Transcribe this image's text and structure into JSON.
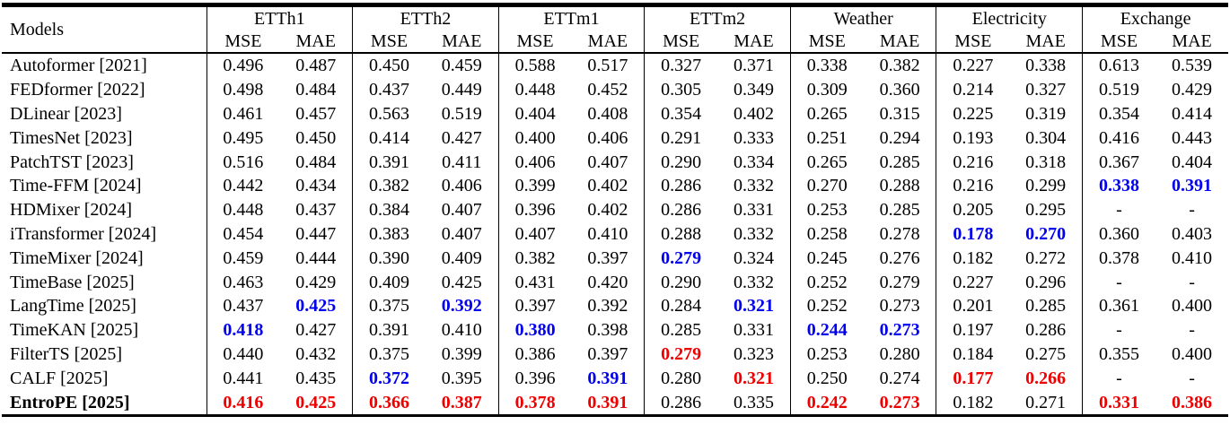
{
  "table": {
    "corner_header": "Models",
    "metric_labels": [
      "MSE",
      "MAE"
    ],
    "datasets": [
      "ETTh1",
      "ETTh2",
      "ETTm1",
      "ETTm2",
      "Weather",
      "Electricity",
      "Exchange"
    ],
    "colors": {
      "red_highlight": "#ee0000",
      "blue_highlight": "#0000ee",
      "text": "#000000",
      "rule": "#000000",
      "background": "#ffffff"
    },
    "rows": [
      {
        "model": "Autoformer [2021]",
        "bold": false,
        "cells": [
          {
            "v": "0.496",
            "s": ""
          },
          {
            "v": "0.487",
            "s": ""
          },
          {
            "v": "0.450",
            "s": ""
          },
          {
            "v": "0.459",
            "s": ""
          },
          {
            "v": "0.588",
            "s": ""
          },
          {
            "v": "0.517",
            "s": ""
          },
          {
            "v": "0.327",
            "s": ""
          },
          {
            "v": "0.371",
            "s": ""
          },
          {
            "v": "0.338",
            "s": ""
          },
          {
            "v": "0.382",
            "s": ""
          },
          {
            "v": "0.227",
            "s": ""
          },
          {
            "v": "0.338",
            "s": ""
          },
          {
            "v": "0.613",
            "s": ""
          },
          {
            "v": "0.539",
            "s": ""
          }
        ]
      },
      {
        "model": "FEDformer [2022]",
        "bold": false,
        "cells": [
          {
            "v": "0.498",
            "s": ""
          },
          {
            "v": "0.484",
            "s": ""
          },
          {
            "v": "0.437",
            "s": ""
          },
          {
            "v": "0.449",
            "s": ""
          },
          {
            "v": "0.448",
            "s": ""
          },
          {
            "v": "0.452",
            "s": ""
          },
          {
            "v": "0.305",
            "s": ""
          },
          {
            "v": "0.349",
            "s": ""
          },
          {
            "v": "0.309",
            "s": ""
          },
          {
            "v": "0.360",
            "s": ""
          },
          {
            "v": "0.214",
            "s": ""
          },
          {
            "v": "0.327",
            "s": ""
          },
          {
            "v": "0.519",
            "s": ""
          },
          {
            "v": "0.429",
            "s": ""
          }
        ]
      },
      {
        "model": "DLinear [2023]",
        "bold": false,
        "cells": [
          {
            "v": "0.461",
            "s": ""
          },
          {
            "v": "0.457",
            "s": ""
          },
          {
            "v": "0.563",
            "s": ""
          },
          {
            "v": "0.519",
            "s": ""
          },
          {
            "v": "0.404",
            "s": ""
          },
          {
            "v": "0.408",
            "s": ""
          },
          {
            "v": "0.354",
            "s": ""
          },
          {
            "v": "0.402",
            "s": ""
          },
          {
            "v": "0.265",
            "s": ""
          },
          {
            "v": "0.315",
            "s": ""
          },
          {
            "v": "0.225",
            "s": ""
          },
          {
            "v": "0.319",
            "s": ""
          },
          {
            "v": "0.354",
            "s": ""
          },
          {
            "v": "0.414",
            "s": ""
          }
        ]
      },
      {
        "model": "TimesNet [2023]",
        "bold": false,
        "cells": [
          {
            "v": "0.495",
            "s": ""
          },
          {
            "v": "0.450",
            "s": ""
          },
          {
            "v": "0.414",
            "s": ""
          },
          {
            "v": "0.427",
            "s": ""
          },
          {
            "v": "0.400",
            "s": ""
          },
          {
            "v": "0.406",
            "s": ""
          },
          {
            "v": "0.291",
            "s": ""
          },
          {
            "v": "0.333",
            "s": ""
          },
          {
            "v": "0.251",
            "s": ""
          },
          {
            "v": "0.294",
            "s": ""
          },
          {
            "v": "0.193",
            "s": ""
          },
          {
            "v": "0.304",
            "s": ""
          },
          {
            "v": "0.416",
            "s": ""
          },
          {
            "v": "0.443",
            "s": ""
          }
        ]
      },
      {
        "model": "PatchTST [2023]",
        "bold": false,
        "cells": [
          {
            "v": "0.516",
            "s": ""
          },
          {
            "v": "0.484",
            "s": ""
          },
          {
            "v": "0.391",
            "s": ""
          },
          {
            "v": "0.411",
            "s": ""
          },
          {
            "v": "0.406",
            "s": ""
          },
          {
            "v": "0.407",
            "s": ""
          },
          {
            "v": "0.290",
            "s": ""
          },
          {
            "v": "0.334",
            "s": ""
          },
          {
            "v": "0.265",
            "s": ""
          },
          {
            "v": "0.285",
            "s": ""
          },
          {
            "v": "0.216",
            "s": ""
          },
          {
            "v": "0.318",
            "s": ""
          },
          {
            "v": "0.367",
            "s": ""
          },
          {
            "v": "0.404",
            "s": ""
          }
        ]
      },
      {
        "model": "Time-FFM [2024]",
        "bold": false,
        "cells": [
          {
            "v": "0.442",
            "s": ""
          },
          {
            "v": "0.434",
            "s": ""
          },
          {
            "v": "0.382",
            "s": ""
          },
          {
            "v": "0.406",
            "s": ""
          },
          {
            "v": "0.399",
            "s": ""
          },
          {
            "v": "0.402",
            "s": ""
          },
          {
            "v": "0.286",
            "s": ""
          },
          {
            "v": "0.332",
            "s": ""
          },
          {
            "v": "0.270",
            "s": ""
          },
          {
            "v": "0.288",
            "s": ""
          },
          {
            "v": "0.216",
            "s": ""
          },
          {
            "v": "0.299",
            "s": ""
          },
          {
            "v": "0.338",
            "s": "b"
          },
          {
            "v": "0.391",
            "s": "b"
          }
        ]
      },
      {
        "model": "HDMixer [2024]",
        "bold": false,
        "cells": [
          {
            "v": "0.448",
            "s": ""
          },
          {
            "v": "0.437",
            "s": ""
          },
          {
            "v": "0.384",
            "s": ""
          },
          {
            "v": "0.407",
            "s": ""
          },
          {
            "v": "0.396",
            "s": ""
          },
          {
            "v": "0.402",
            "s": ""
          },
          {
            "v": "0.286",
            "s": ""
          },
          {
            "v": "0.331",
            "s": ""
          },
          {
            "v": "0.253",
            "s": ""
          },
          {
            "v": "0.285",
            "s": ""
          },
          {
            "v": "0.205",
            "s": ""
          },
          {
            "v": "0.295",
            "s": ""
          },
          {
            "v": "-",
            "s": ""
          },
          {
            "v": "-",
            "s": ""
          }
        ]
      },
      {
        "model": "iTransformer [2024]",
        "bold": false,
        "cells": [
          {
            "v": "0.454",
            "s": ""
          },
          {
            "v": "0.447",
            "s": ""
          },
          {
            "v": "0.383",
            "s": ""
          },
          {
            "v": "0.407",
            "s": ""
          },
          {
            "v": "0.407",
            "s": ""
          },
          {
            "v": "0.410",
            "s": ""
          },
          {
            "v": "0.288",
            "s": ""
          },
          {
            "v": "0.332",
            "s": ""
          },
          {
            "v": "0.258",
            "s": ""
          },
          {
            "v": "0.278",
            "s": ""
          },
          {
            "v": "0.178",
            "s": "b"
          },
          {
            "v": "0.270",
            "s": "b"
          },
          {
            "v": "0.360",
            "s": ""
          },
          {
            "v": "0.403",
            "s": ""
          }
        ]
      },
      {
        "model": "TimeMixer [2024]",
        "bold": false,
        "cells": [
          {
            "v": "0.459",
            "s": ""
          },
          {
            "v": "0.444",
            "s": ""
          },
          {
            "v": "0.390",
            "s": ""
          },
          {
            "v": "0.409",
            "s": ""
          },
          {
            "v": "0.382",
            "s": ""
          },
          {
            "v": "0.397",
            "s": ""
          },
          {
            "v": "0.279",
            "s": "b"
          },
          {
            "v": "0.324",
            "s": ""
          },
          {
            "v": "0.245",
            "s": ""
          },
          {
            "v": "0.276",
            "s": ""
          },
          {
            "v": "0.182",
            "s": ""
          },
          {
            "v": "0.272",
            "s": ""
          },
          {
            "v": "0.378",
            "s": ""
          },
          {
            "v": "0.410",
            "s": ""
          }
        ]
      },
      {
        "model": "TimeBase [2025]",
        "bold": false,
        "cells": [
          {
            "v": "0.463",
            "s": ""
          },
          {
            "v": "0.429",
            "s": ""
          },
          {
            "v": "0.409",
            "s": ""
          },
          {
            "v": "0.425",
            "s": ""
          },
          {
            "v": "0.431",
            "s": ""
          },
          {
            "v": "0.420",
            "s": ""
          },
          {
            "v": "0.290",
            "s": ""
          },
          {
            "v": "0.332",
            "s": ""
          },
          {
            "v": "0.252",
            "s": ""
          },
          {
            "v": "0.279",
            "s": ""
          },
          {
            "v": "0.227",
            "s": ""
          },
          {
            "v": "0.296",
            "s": ""
          },
          {
            "v": "-",
            "s": ""
          },
          {
            "v": "-",
            "s": ""
          }
        ]
      },
      {
        "model": "LangTime [2025]",
        "bold": false,
        "cells": [
          {
            "v": "0.437",
            "s": ""
          },
          {
            "v": "0.425",
            "s": "b"
          },
          {
            "v": "0.375",
            "s": ""
          },
          {
            "v": "0.392",
            "s": "b"
          },
          {
            "v": "0.397",
            "s": ""
          },
          {
            "v": "0.392",
            "s": ""
          },
          {
            "v": "0.284",
            "s": ""
          },
          {
            "v": "0.321",
            "s": "b"
          },
          {
            "v": "0.252",
            "s": ""
          },
          {
            "v": "0.273",
            "s": ""
          },
          {
            "v": "0.201",
            "s": ""
          },
          {
            "v": "0.285",
            "s": ""
          },
          {
            "v": "0.361",
            "s": ""
          },
          {
            "v": "0.400",
            "s": ""
          }
        ]
      },
      {
        "model": "TimeKAN [2025]",
        "bold": false,
        "cells": [
          {
            "v": "0.418",
            "s": "b"
          },
          {
            "v": "0.427",
            "s": ""
          },
          {
            "v": "0.391",
            "s": ""
          },
          {
            "v": "0.410",
            "s": ""
          },
          {
            "v": "0.380",
            "s": "b"
          },
          {
            "v": "0.398",
            "s": ""
          },
          {
            "v": "0.285",
            "s": ""
          },
          {
            "v": "0.331",
            "s": ""
          },
          {
            "v": "0.244",
            "s": "b"
          },
          {
            "v": "0.273",
            "s": "b"
          },
          {
            "v": "0.197",
            "s": ""
          },
          {
            "v": "0.286",
            "s": ""
          },
          {
            "v": "-",
            "s": ""
          },
          {
            "v": "-",
            "s": ""
          }
        ]
      },
      {
        "model": "FilterTS [2025]",
        "bold": false,
        "cells": [
          {
            "v": "0.440",
            "s": ""
          },
          {
            "v": "0.432",
            "s": ""
          },
          {
            "v": "0.375",
            "s": ""
          },
          {
            "v": "0.399",
            "s": ""
          },
          {
            "v": "0.386",
            "s": ""
          },
          {
            "v": "0.397",
            "s": ""
          },
          {
            "v": "0.279",
            "s": "r"
          },
          {
            "v": "0.323",
            "s": ""
          },
          {
            "v": "0.253",
            "s": ""
          },
          {
            "v": "0.280",
            "s": ""
          },
          {
            "v": "0.184",
            "s": ""
          },
          {
            "v": "0.275",
            "s": ""
          },
          {
            "v": "0.355",
            "s": ""
          },
          {
            "v": "0.400",
            "s": ""
          }
        ]
      },
      {
        "model": "CALF [2025]",
        "bold": false,
        "cells": [
          {
            "v": "0.441",
            "s": ""
          },
          {
            "v": "0.435",
            "s": ""
          },
          {
            "v": "0.372",
            "s": "b"
          },
          {
            "v": "0.395",
            "s": ""
          },
          {
            "v": "0.396",
            "s": ""
          },
          {
            "v": "0.391",
            "s": "b"
          },
          {
            "v": "0.280",
            "s": ""
          },
          {
            "v": "0.321",
            "s": "r"
          },
          {
            "v": "0.250",
            "s": ""
          },
          {
            "v": "0.274",
            "s": ""
          },
          {
            "v": "0.177",
            "s": "r"
          },
          {
            "v": "0.266",
            "s": "r"
          },
          {
            "v": "-",
            "s": ""
          },
          {
            "v": "-",
            "s": ""
          }
        ]
      },
      {
        "model": "EntroPE [2025]",
        "bold": true,
        "cells": [
          {
            "v": "0.416",
            "s": "r"
          },
          {
            "v": "0.425",
            "s": "r"
          },
          {
            "v": "0.366",
            "s": "r"
          },
          {
            "v": "0.387",
            "s": "r"
          },
          {
            "v": "0.378",
            "s": "r"
          },
          {
            "v": "0.391",
            "s": "r"
          },
          {
            "v": "0.286",
            "s": ""
          },
          {
            "v": "0.335",
            "s": ""
          },
          {
            "v": "0.242",
            "s": "r"
          },
          {
            "v": "0.273",
            "s": "r"
          },
          {
            "v": "0.182",
            "s": ""
          },
          {
            "v": "0.271",
            "s": ""
          },
          {
            "v": "0.331",
            "s": "r"
          },
          {
            "v": "0.386",
            "s": "r"
          }
        ]
      }
    ]
  }
}
